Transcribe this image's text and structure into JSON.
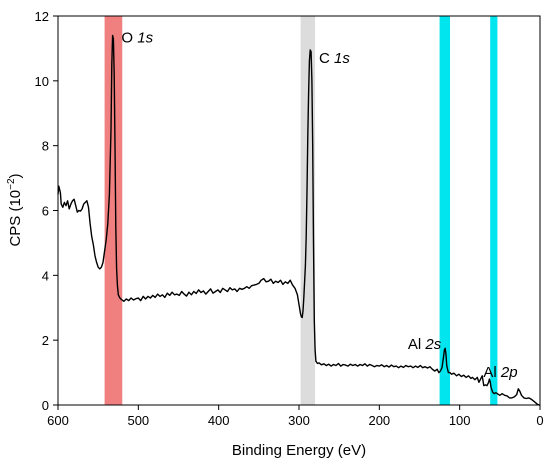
{
  "chart_data": {
    "type": "line",
    "xlabel": "Binding Energy (eV)",
    "ylabel": {
      "base": "CPS (10",
      "exp": "−2",
      "close": ")"
    },
    "xlim": [
      600,
      0
    ],
    "ylim": [
      0,
      12
    ],
    "x_reversed": true,
    "xticks": [
      600,
      500,
      400,
      300,
      200,
      100,
      0
    ],
    "yticks": [
      0,
      2,
      4,
      6,
      8,
      10,
      12
    ],
    "grid": false,
    "highlight_bands": [
      {
        "range": [
          520,
          542
        ],
        "color": "#f08080"
      },
      {
        "range": [
          280,
          298
        ],
        "color": "#dcdcdc"
      },
      {
        "range": [
          112,
          125
        ],
        "color": "#00e5ee"
      },
      {
        "range": [
          53,
          62
        ],
        "color": "#00e5ee"
      }
    ],
    "annotations": [
      {
        "element": "O",
        "orbital": "1s",
        "x": 531,
        "y": 11.3
      },
      {
        "element": "C",
        "orbital": "1s",
        "x": 285,
        "y": 10.8
      },
      {
        "element": "Al",
        "orbital": "2s",
        "x": 118,
        "y": 1.6
      },
      {
        "element": "Al",
        "orbital": "2p",
        "x": 63,
        "y": 0.95
      }
    ],
    "series": [
      {
        "color": "#000000",
        "points": [
          [
            600,
            6.5
          ],
          [
            599,
            6.75
          ],
          [
            597,
            6.55
          ],
          [
            596,
            6.2
          ],
          [
            594,
            6.1
          ],
          [
            592,
            6.25
          ],
          [
            590,
            6.15
          ],
          [
            588,
            6.3
          ],
          [
            586,
            6.05
          ],
          [
            584,
            6.2
          ],
          [
            582,
            6.3
          ],
          [
            580,
            6.35
          ],
          [
            578,
            6.15
          ],
          [
            576,
            5.95
          ],
          [
            574,
            6.0
          ],
          [
            572,
            5.98
          ],
          [
            570,
            6.05
          ],
          [
            568,
            6.2
          ],
          [
            566,
            6.25
          ],
          [
            564,
            6.3
          ],
          [
            562,
            6.1
          ],
          [
            560,
            5.6
          ],
          [
            558,
            5.2
          ],
          [
            556,
            4.95
          ],
          [
            554,
            4.6
          ],
          [
            552,
            4.4
          ],
          [
            550,
            4.25
          ],
          [
            548,
            4.2
          ],
          [
            546,
            4.25
          ],
          [
            544,
            4.4
          ],
          [
            542,
            4.75
          ],
          [
            540,
            5.1
          ],
          [
            538,
            5.6
          ],
          [
            536,
            6.5
          ],
          [
            534,
            8.5
          ],
          [
            533,
            10.5
          ],
          [
            532,
            11.4
          ],
          [
            531,
            11.3
          ],
          [
            530,
            10.2
          ],
          [
            529,
            8.0
          ],
          [
            528,
            5.5
          ],
          [
            527,
            4.2
          ],
          [
            526,
            3.7
          ],
          [
            525,
            3.4
          ],
          [
            523,
            3.3
          ],
          [
            521,
            3.25
          ],
          [
            518,
            3.2
          ],
          [
            515,
            3.27
          ],
          [
            512,
            3.22
          ],
          [
            509,
            3.3
          ],
          [
            506,
            3.24
          ],
          [
            503,
            3.28
          ],
          [
            500,
            3.3
          ],
          [
            497,
            3.22
          ],
          [
            494,
            3.35
          ],
          [
            491,
            3.27
          ],
          [
            488,
            3.35
          ],
          [
            485,
            3.3
          ],
          [
            482,
            3.38
          ],
          [
            479,
            3.32
          ],
          [
            476,
            3.42
          ],
          [
            473,
            3.35
          ],
          [
            470,
            3.4
          ],
          [
            467,
            3.32
          ],
          [
            464,
            3.45
          ],
          [
            461,
            3.38
          ],
          [
            458,
            3.48
          ],
          [
            455,
            3.4
          ],
          [
            452,
            3.42
          ],
          [
            449,
            3.38
          ],
          [
            446,
            3.5
          ],
          [
            443,
            3.42
          ],
          [
            440,
            3.36
          ],
          [
            437,
            3.48
          ],
          [
            434,
            3.4
          ],
          [
            431,
            3.5
          ],
          [
            428,
            3.44
          ],
          [
            425,
            3.55
          ],
          [
            422,
            3.47
          ],
          [
            419,
            3.52
          ],
          [
            416,
            3.42
          ],
          [
            413,
            3.5
          ],
          [
            410,
            3.58
          ],
          [
            407,
            3.45
          ],
          [
            404,
            3.5
          ],
          [
            401,
            3.55
          ],
          [
            398,
            3.47
          ],
          [
            395,
            3.6
          ],
          [
            392,
            3.55
          ],
          [
            389,
            3.5
          ],
          [
            386,
            3.62
          ],
          [
            383,
            3.55
          ],
          [
            380,
            3.58
          ],
          [
            377,
            3.5
          ],
          [
            374,
            3.6
          ],
          [
            371,
            3.57
          ],
          [
            368,
            3.6
          ],
          [
            365,
            3.65
          ],
          [
            362,
            3.6
          ],
          [
            359,
            3.68
          ],
          [
            356,
            3.7
          ],
          [
            353,
            3.72
          ],
          [
            350,
            3.75
          ],
          [
            347,
            3.85
          ],
          [
            344,
            3.9
          ],
          [
            341,
            3.8
          ],
          [
            338,
            3.82
          ],
          [
            335,
            3.88
          ],
          [
            332,
            3.75
          ],
          [
            329,
            3.82
          ],
          [
            326,
            3.78
          ],
          [
            323,
            3.85
          ],
          [
            320,
            3.72
          ],
          [
            317,
            3.8
          ],
          [
            314,
            3.75
          ],
          [
            311,
            3.85
          ],
          [
            308,
            3.7
          ],
          [
            305,
            3.6
          ],
          [
            302,
            3.4
          ],
          [
            300,
            3.1
          ],
          [
            298,
            2.8
          ],
          [
            297,
            2.72
          ],
          [
            296,
            2.7
          ],
          [
            295,
            2.9
          ],
          [
            294,
            3.3
          ],
          [
            293,
            3.8
          ],
          [
            292,
            4.3
          ],
          [
            291,
            5.2
          ],
          [
            290,
            6.6
          ],
          [
            289,
            8.3
          ],
          [
            288,
            9.6
          ],
          [
            287,
            10.6
          ],
          [
            286,
            10.95
          ],
          [
            285,
            10.9
          ],
          [
            284,
            10.0
          ],
          [
            283,
            8.0
          ],
          [
            282,
            5.0
          ],
          [
            281,
            2.6
          ],
          [
            280,
            1.7
          ],
          [
            279,
            1.35
          ],
          [
            277,
            1.28
          ],
          [
            275,
            1.3
          ],
          [
            272,
            1.24
          ],
          [
            269,
            1.27
          ],
          [
            266,
            1.22
          ],
          [
            263,
            1.26
          ],
          [
            260,
            1.2
          ],
          [
            257,
            1.25
          ],
          [
            254,
            1.22
          ],
          [
            251,
            1.28
          ],
          [
            248,
            1.2
          ],
          [
            245,
            1.25
          ],
          [
            242,
            1.23
          ],
          [
            239,
            1.2
          ],
          [
            236,
            1.26
          ],
          [
            233,
            1.22
          ],
          [
            230,
            1.25
          ],
          [
            227,
            1.2
          ],
          [
            224,
            1.25
          ],
          [
            221,
            1.22
          ],
          [
            218,
            1.27
          ],
          [
            215,
            1.2
          ],
          [
            212,
            1.25
          ],
          [
            209,
            1.22
          ],
          [
            206,
            1.18
          ],
          [
            203,
            1.22
          ],
          [
            200,
            1.2
          ],
          [
            197,
            1.24
          ],
          [
            194,
            1.18
          ],
          [
            191,
            1.22
          ],
          [
            188,
            1.17
          ],
          [
            185,
            1.23
          ],
          [
            182,
            1.18
          ],
          [
            179,
            1.2
          ],
          [
            176,
            1.15
          ],
          [
            173,
            1.2
          ],
          [
            170,
            1.16
          ],
          [
            167,
            1.22
          ],
          [
            164,
            1.18
          ],
          [
            161,
            1.2
          ],
          [
            158,
            1.15
          ],
          [
            155,
            1.2
          ],
          [
            152,
            1.16
          ],
          [
            149,
            1.22
          ],
          [
            146,
            1.15
          ],
          [
            143,
            1.18
          ],
          [
            140,
            1.14
          ],
          [
            137,
            1.18
          ],
          [
            134,
            1.1
          ],
          [
            131,
            1.05
          ],
          [
            128,
            1.1
          ],
          [
            126,
            1.0
          ],
          [
            124,
            1.05
          ],
          [
            122,
            1.15
          ],
          [
            120,
            1.5
          ],
          [
            119,
            1.7
          ],
          [
            118,
            1.75
          ],
          [
            117,
            1.55
          ],
          [
            116,
            1.2
          ],
          [
            114,
            1.0
          ],
          [
            112,
            1.0
          ],
          [
            110,
            0.95
          ],
          [
            107,
            0.98
          ],
          [
            104,
            0.9
          ],
          [
            101,
            0.95
          ],
          [
            98,
            0.88
          ],
          [
            95,
            0.92
          ],
          [
            92,
            0.85
          ],
          [
            89,
            0.9
          ],
          [
            86,
            0.82
          ],
          [
            84,
            0.85
          ],
          [
            81,
            0.78
          ],
          [
            78,
            0.85
          ],
          [
            76,
            0.7
          ],
          [
            74,
            0.8
          ],
          [
            72,
            0.9
          ],
          [
            70,
            0.6
          ],
          [
            68,
            0.62
          ],
          [
            66,
            0.6
          ],
          [
            64,
            0.7
          ],
          [
            63,
            0.8
          ],
          [
            62,
            0.72
          ],
          [
            61,
            0.55
          ],
          [
            59,
            0.4
          ],
          [
            57,
            0.35
          ],
          [
            55,
            0.38
          ],
          [
            53,
            0.35
          ],
          [
            50,
            0.3
          ],
          [
            47,
            0.35
          ],
          [
            44,
            0.3
          ],
          [
            41,
            0.28
          ],
          [
            38,
            0.22
          ],
          [
            35,
            0.22
          ],
          [
            32,
            0.25
          ],
          [
            29,
            0.32
          ],
          [
            27,
            0.5
          ],
          [
            25,
            0.42
          ],
          [
            23,
            0.3
          ],
          [
            20,
            0.22
          ],
          [
            17,
            0.2
          ],
          [
            14,
            0.22
          ],
          [
            11,
            0.18
          ],
          [
            8,
            0.12
          ],
          [
            5,
            0.06
          ],
          [
            3,
            0.02
          ],
          [
            1,
            0.0
          ],
          [
            0,
            0.0
          ]
        ]
      }
    ]
  }
}
